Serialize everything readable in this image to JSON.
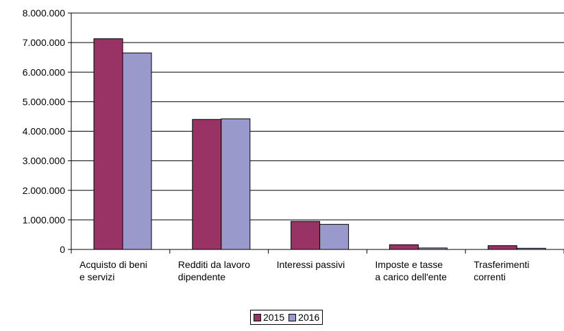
{
  "colors": {
    "series_2015": "#993366",
    "series_2016": "#9999cc",
    "axis": "#000000",
    "grid": "#000000"
  },
  "chart_data": {
    "type": "bar",
    "categories": [
      [
        "Acquisto di beni",
        "e servizi"
      ],
      [
        "Redditi da lavoro",
        "dipendente"
      ],
      [
        "Interessi passivi"
      ],
      [
        "Imposte e tasse",
        "a carico dell'ente"
      ],
      [
        "Trasferimenti",
        "correnti"
      ]
    ],
    "series": [
      {
        "name": "2015",
        "values": [
          7130000,
          4400000,
          950000,
          160000,
          130000
        ]
      },
      {
        "name": "2016",
        "values": [
          6650000,
          4420000,
          850000,
          50000,
          40000
        ]
      }
    ],
    "yticks": [
      "0",
      "1.000.000",
      "2.000.000",
      "3.000.000",
      "4.000.000",
      "5.000.000",
      "6.000.000",
      "7.000.000",
      "8.000.000"
    ],
    "ylim": [
      0,
      8000000
    ],
    "grid": true,
    "legend_position": "bottom"
  }
}
